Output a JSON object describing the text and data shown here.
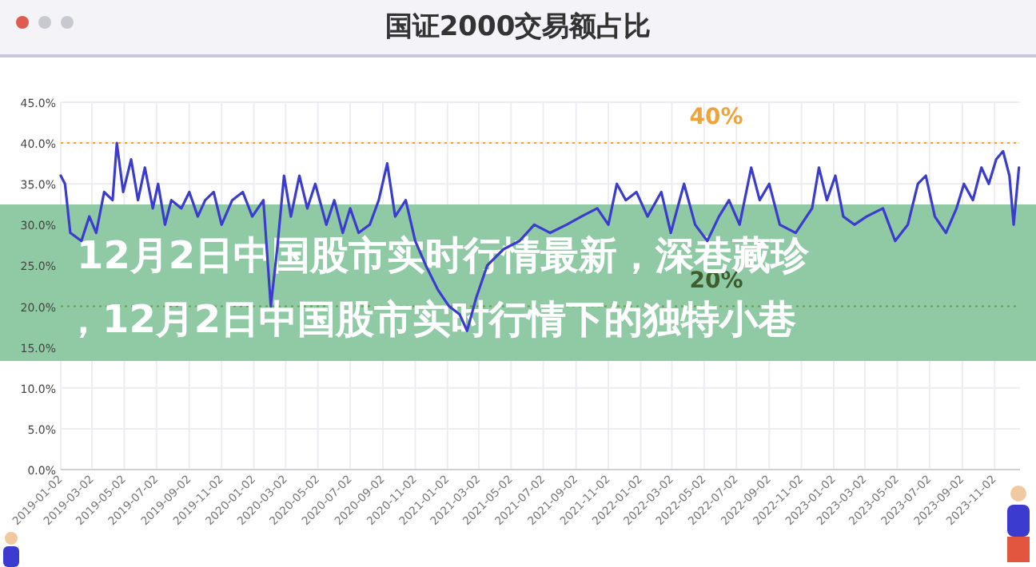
{
  "chart_data": {
    "type": "line",
    "title": "国证2000交易额占比",
    "annotations": [
      "12月2日中国股市实时行情最新，深巷藏珍",
      "，12月2日中国股市实时行情下的独特小巷"
    ],
    "x": [
      "2019-01-02",
      "2019-01-10",
      "2019-01-20",
      "2019-02-10",
      "2019-02-25",
      "2019-03-10",
      "2019-03-25",
      "2019-04-10",
      "2019-04-18",
      "2019-04-30",
      "2019-05-15",
      "2019-05-28",
      "2019-06-10",
      "2019-06-25",
      "2019-07-05",
      "2019-07-18",
      "2019-07-30",
      "2019-08-18",
      "2019-09-02",
      "2019-09-18",
      "2019-10-02",
      "2019-10-18",
      "2019-11-02",
      "2019-11-22",
      "2019-12-12",
      "2019-12-30",
      "2020-01-20",
      "2020-02-03",
      "2020-02-15",
      "2020-02-28",
      "2020-03-12",
      "2020-03-28",
      "2020-04-12",
      "2020-04-27",
      "2020-05-18",
      "2020-06-02",
      "2020-06-18",
      "2020-07-02",
      "2020-07-18",
      "2020-08-08",
      "2020-08-25",
      "2020-09-10",
      "2020-09-25",
      "2020-10-15",
      "2020-11-02",
      "2020-11-22",
      "2020-12-15",
      "2021-01-05",
      "2021-01-25",
      "2021-02-08",
      "2021-02-25",
      "2021-03-18",
      "2021-04-18",
      "2021-05-18",
      "2021-06-15",
      "2021-07-15",
      "2021-08-15",
      "2021-09-12",
      "2021-10-12",
      "2021-11-02",
      "2021-11-18",
      "2021-12-05",
      "2021-12-25",
      "2022-01-15",
      "2022-02-10",
      "2022-02-28",
      "2022-03-25",
      "2022-04-15",
      "2022-05-08",
      "2022-05-30",
      "2022-06-18",
      "2022-07-08",
      "2022-07-30",
      "2022-08-15",
      "2022-09-02",
      "2022-09-22",
      "2022-10-22",
      "2022-11-22",
      "2022-12-05",
      "2022-12-20",
      "2023-01-05",
      "2023-01-20",
      "2023-02-10",
      "2023-03-05",
      "2023-04-05",
      "2023-04-28",
      "2023-05-22",
      "2023-06-10",
      "2023-06-25",
      "2023-07-12",
      "2023-08-02",
      "2023-08-22",
      "2023-09-05",
      "2023-09-22",
      "2023-10-08",
      "2023-10-22",
      "2023-11-05",
      "2023-11-18",
      "2023-11-30",
      "2023-12-08",
      "2023-12-18"
    ],
    "series": [
      {
        "color": "#3b3bcf",
        "values": [
          36,
          35,
          29,
          28,
          31,
          29,
          34,
          33,
          40,
          34,
          38,
          33,
          37,
          32,
          35,
          30,
          33,
          32,
          34,
          31,
          33,
          34,
          30,
          33,
          34,
          31,
          33,
          20,
          27,
          36,
          31,
          36,
          32,
          35,
          30,
          33,
          29,
          32,
          29,
          30,
          33,
          37.5,
          31,
          33,
          28,
          25,
          22,
          20,
          19,
          17,
          21,
          25,
          27,
          28,
          30,
          29,
          30,
          31,
          32,
          30,
          35,
          33,
          34,
          31,
          34,
          29,
          35,
          30,
          28,
          31,
          33,
          30,
          37,
          33,
          35,
          30,
          29,
          32,
          37,
          33,
          36,
          31,
          30,
          31,
          32,
          28,
          30,
          35,
          36,
          31,
          29,
          32,
          35,
          33,
          37,
          35,
          38,
          39,
          36,
          30,
          37
        ]
      }
    ],
    "xlim": [
      "2019-01-02",
      "2023-12-20"
    ],
    "xticks": [
      "2019-01-02",
      "2019-03-02",
      "2019-05-02",
      "2019-07-02",
      "2019-09-02",
      "2019-11-02",
      "2020-01-02",
      "2020-03-02",
      "2020-05-02",
      "2020-07-02",
      "2020-09-02",
      "2020-11-02",
      "2021-01-02",
      "2021-03-02",
      "2021-05-02",
      "2021-07-02",
      "2021-09-02",
      "2021-11-02",
      "2022-01-02",
      "2022-03-02",
      "2022-05-02",
      "2022-07-02",
      "2022-09-02",
      "2022-11-02",
      "2023-01-02",
      "2023-03-02",
      "2023-05-02",
      "2023-07-02",
      "2023-09-02",
      "2023-11-02"
    ],
    "ylim": [
      0,
      45
    ],
    "yticks": [
      {
        "value": 0,
        "label": "0.0%"
      },
      {
        "value": 5,
        "label": "5.0%"
      },
      {
        "value": 10,
        "label": "10.0%"
      },
      {
        "value": 15,
        "label": "15.0%"
      },
      {
        "value": 20,
        "label": "20.0%"
      },
      {
        "value": 25,
        "label": "25.0%"
      },
      {
        "value": 30,
        "label": "30.0%"
      },
      {
        "value": 35,
        "label": "35.0%"
      },
      {
        "value": 40,
        "label": "40.0%"
      },
      {
        "value": 45,
        "label": "45.0%"
      }
    ],
    "ref_lines": [
      {
        "axis": "y",
        "value": 40,
        "label": "40%",
        "color": "#f0a33a",
        "line_style": "dotted"
      },
      {
        "axis": "y",
        "value": 20,
        "label": "20%",
        "color": "#6a9f4a",
        "line_style": "dotted"
      }
    ],
    "grid": true,
    "marker": "none",
    "line_style": "solid"
  }
}
